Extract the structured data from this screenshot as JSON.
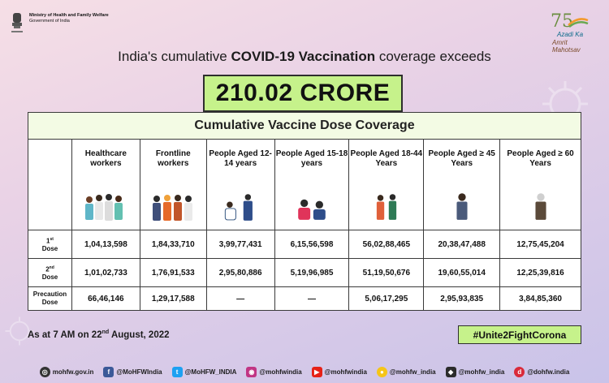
{
  "header": {
    "ministry_line1": "Ministry of Health and Family Welfare",
    "ministry_line2": "Government of India",
    "emblem_caption": "सत्यमेव जयते",
    "azadi_70": "75",
    "azadi_word1": "Azadi Ka",
    "azadi_word2": "Amrit Mahotsav"
  },
  "headline": {
    "prefix": "India's cumulative ",
    "bold": "COVID-19 Vaccination",
    "suffix": " coverage exceeds"
  },
  "total": "210.02 CRORE",
  "table": {
    "title": "Cumulative Vaccine Dose Coverage",
    "columns": [
      {
        "label": "Healthcare workers"
      },
      {
        "label": "Frontline workers"
      },
      {
        "label": "People Aged 12-14 years"
      },
      {
        "label": "People Aged 15-18 years"
      },
      {
        "label": "People Aged 18-44 Years"
      },
      {
        "label": "People Aged ≥ 45 Years"
      },
      {
        "label": "People Aged ≥ 60 Years"
      }
    ],
    "rows": [
      {
        "ord": "1",
        "sup": "st",
        "label": "Dose",
        "values": [
          "1,04,13,598",
          "1,84,33,710",
          "3,99,77,431",
          "6,15,56,598",
          "56,02,88,465",
          "20,38,47,488",
          "12,75,45,204"
        ]
      },
      {
        "ord": "2",
        "sup": "nd",
        "label": "Dose",
        "values": [
          "1,01,02,733",
          "1,76,91,533",
          "2,95,80,886",
          "5,19,96,985",
          "51,19,50,676",
          "19,60,55,014",
          "12,25,39,816"
        ]
      },
      {
        "ord": "Precaution",
        "sup": "",
        "label": "Dose",
        "values": [
          "66,46,146",
          "1,29,17,588",
          "—",
          "—",
          "5,06,17,295",
          "2,95,93,835",
          "3,84,85,360"
        ]
      }
    ]
  },
  "note": {
    "prefix": "As at 7 AM on 22",
    "sup": "nd",
    "suffix": " August, 2022"
  },
  "hashtag": "#Unite2FightCorona",
  "footer": {
    "website": "mohfw.gov.in",
    "facebook": "@MoHFWIndia",
    "twitter": "@MoHFW_INDIA",
    "instagram": "@mohfwindia",
    "youtube": "@mohfwindia",
    "koo": "@mohfw_india",
    "sharechat": "@mohfw_india",
    "dailyhunt": "@dohfw.india"
  },
  "colors": {
    "highlight_green": "#c6f28b",
    "table_header_bg": "#f3fbe4"
  }
}
